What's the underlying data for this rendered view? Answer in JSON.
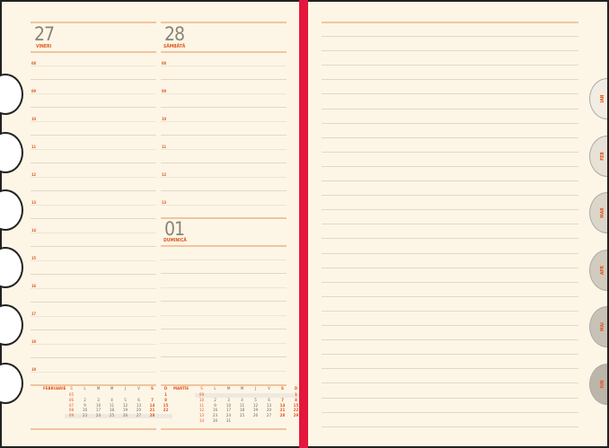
{
  "days": [
    {
      "num": "27",
      "name": "VINERI"
    },
    {
      "num": "28",
      "name": "SÂMBĂTĂ"
    },
    {
      "num": "01",
      "name": "DUMINICĂ"
    }
  ],
  "hours_left": [
    "08",
    "09",
    "10",
    "11",
    "12",
    "13",
    "14",
    "15",
    "16",
    "17",
    "18",
    "19"
  ],
  "hours_right": [
    "08",
    "09",
    "10",
    "11",
    "12",
    "13"
  ],
  "weekday_headers": [
    "S",
    "L",
    "M",
    "M",
    "J",
    "V",
    "S",
    "D"
  ],
  "calendars": [
    {
      "month": "FEBRUARIE",
      "rows": [
        [
          "05",
          "",
          "",
          "",
          "",
          "",
          "",
          "1"
        ],
        [
          "06",
          "2",
          "3",
          "4",
          "5",
          "6",
          "7",
          "8"
        ],
        [
          "07",
          "9",
          "10",
          "11",
          "12",
          "13",
          "14",
          "15"
        ],
        [
          "08",
          "16",
          "17",
          "18",
          "19",
          "20",
          "21",
          "22"
        ],
        [
          "09",
          "23",
          "24",
          "25",
          "26",
          "27",
          "28",
          ""
        ]
      ]
    },
    {
      "month": "MARTIE",
      "rows": [
        [
          "09",
          "",
          "",
          "",
          "",
          "",
          "",
          "1"
        ],
        [
          "10",
          "2",
          "3",
          "4",
          "5",
          "6",
          "7",
          "8"
        ],
        [
          "11",
          "9",
          "10",
          "11",
          "12",
          "13",
          "14",
          "15"
        ],
        [
          "12",
          "16",
          "17",
          "18",
          "19",
          "20",
          "21",
          "22"
        ],
        [
          "13",
          "23",
          "24",
          "25",
          "26",
          "27",
          "28",
          "29"
        ],
        [
          "14",
          "30",
          "31",
          "",
          "",
          "",
          "",
          ""
        ]
      ]
    }
  ],
  "month_tabs": [
    {
      "label": "IAN",
      "color": "#f2ede2"
    },
    {
      "label": "FEB",
      "color": "#e8e2d6"
    },
    {
      "label": "MAR",
      "color": "#dcd6ca"
    },
    {
      "label": "APR",
      "color": "#d2ccc0"
    },
    {
      "label": "MAI",
      "color": "#c8c2b6"
    },
    {
      "label": "IUN",
      "color": "#bcb6aa"
    }
  ],
  "colors": {
    "accent": "#e0561e",
    "spine": "#e4173d",
    "paper": "#fdf6e6"
  }
}
